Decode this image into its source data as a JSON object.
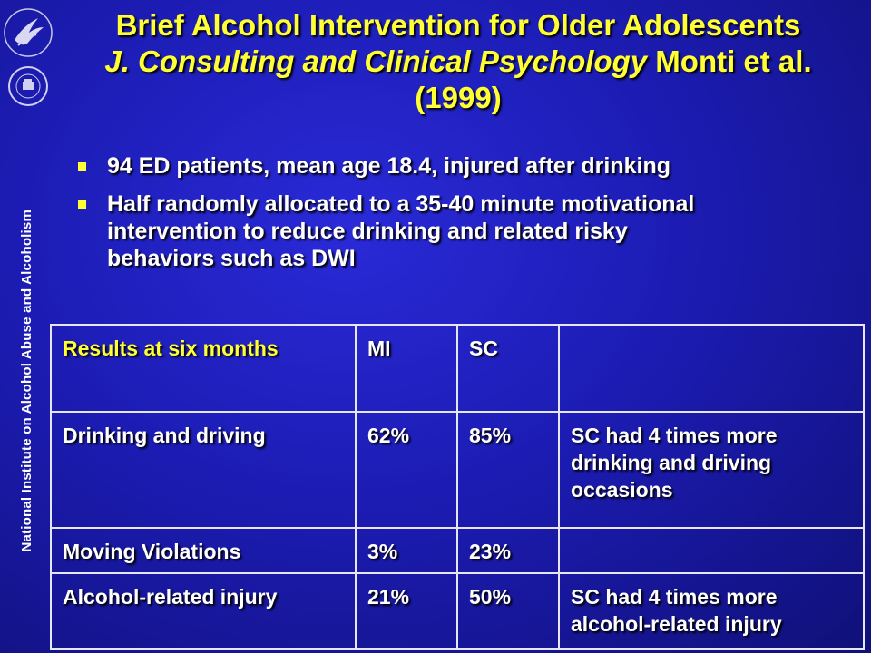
{
  "sidebar": {
    "text": "National Institute on Alcohol Abuse and Alcoholism"
  },
  "logos": {
    "hhs": "hhs-eagle-logo",
    "nih": "nih-seal-logo"
  },
  "title": {
    "line1": "Brief Alcohol Intervention for Older Adolescents",
    "journal": "J. Consulting and Clinical Psychology",
    "authors": " Monti et al.",
    "line3": "(1999)"
  },
  "bullets": [
    "94 ED patients, mean age 18.4, injured after drinking",
    "Half randomly allocated to a 35-40 minute motivational intervention to reduce drinking and related risky behaviors such as DWI"
  ],
  "table": {
    "header": [
      "Results at six months",
      "MI",
      "SC",
      ""
    ],
    "rows": [
      [
        "Drinking and driving",
        "62%",
        "85%",
        "SC had 4 times more drinking and driving occasions"
      ],
      [
        "Moving Violations",
        "3%",
        "23%",
        ""
      ],
      [
        "Alcohol-related injury",
        "21%",
        "50%",
        "SC had 4 times more alcohol-related injury"
      ]
    ]
  },
  "colors": {
    "title": "#ffff33",
    "header": "#ffff33",
    "background": "#1c1cb4",
    "text": "#ffffff"
  }
}
